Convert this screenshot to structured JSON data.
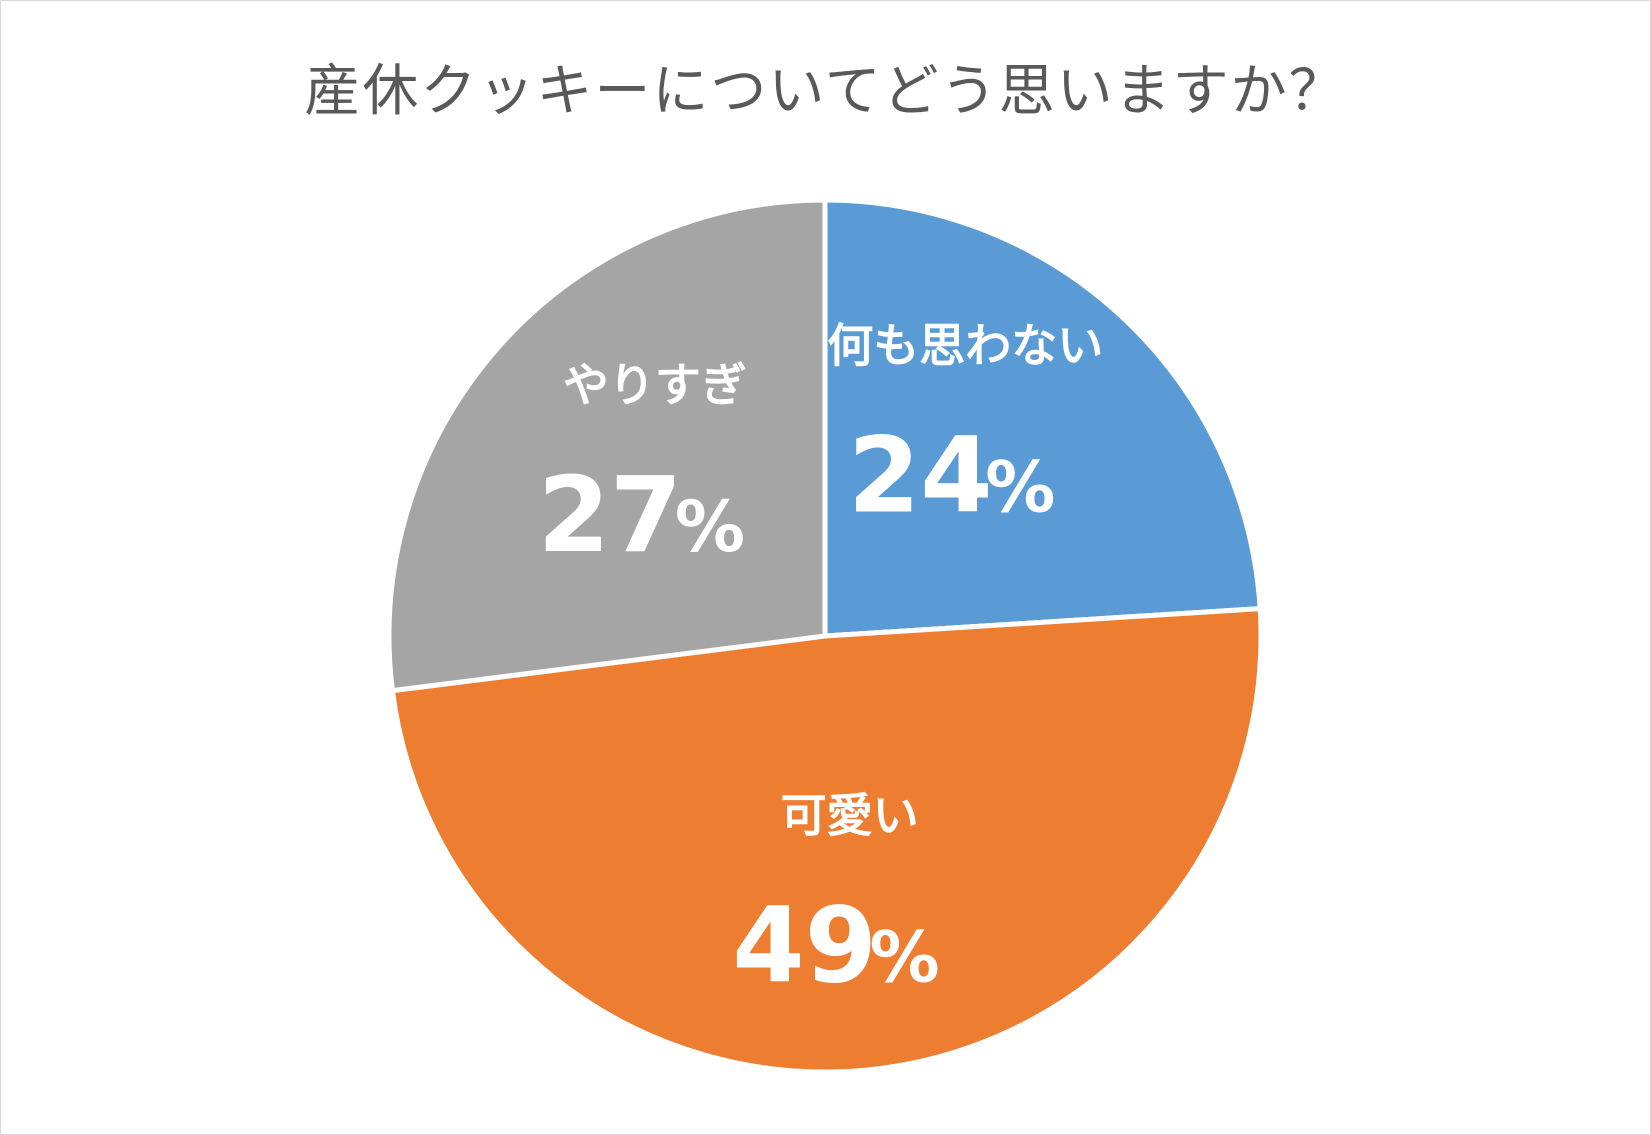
{
  "chart_data": {
    "type": "pie",
    "title": "産休クッキーについてどう思いますか？",
    "slices": [
      {
        "label": "何も思わない",
        "value": 24,
        "percent_text": "%",
        "color": "#5b9bd5"
      },
      {
        "label": "可愛い",
        "value": 49,
        "percent_text": "%",
        "color": "#ed7d31"
      },
      {
        "label": "やりすぎ",
        "value": 27,
        "percent_text": "%",
        "color": "#a5a5a5"
      }
    ],
    "start_angle_deg": 0,
    "direction": "clockwise",
    "slice_border_color": "#ffffff",
    "label_color": "#ffffff"
  }
}
